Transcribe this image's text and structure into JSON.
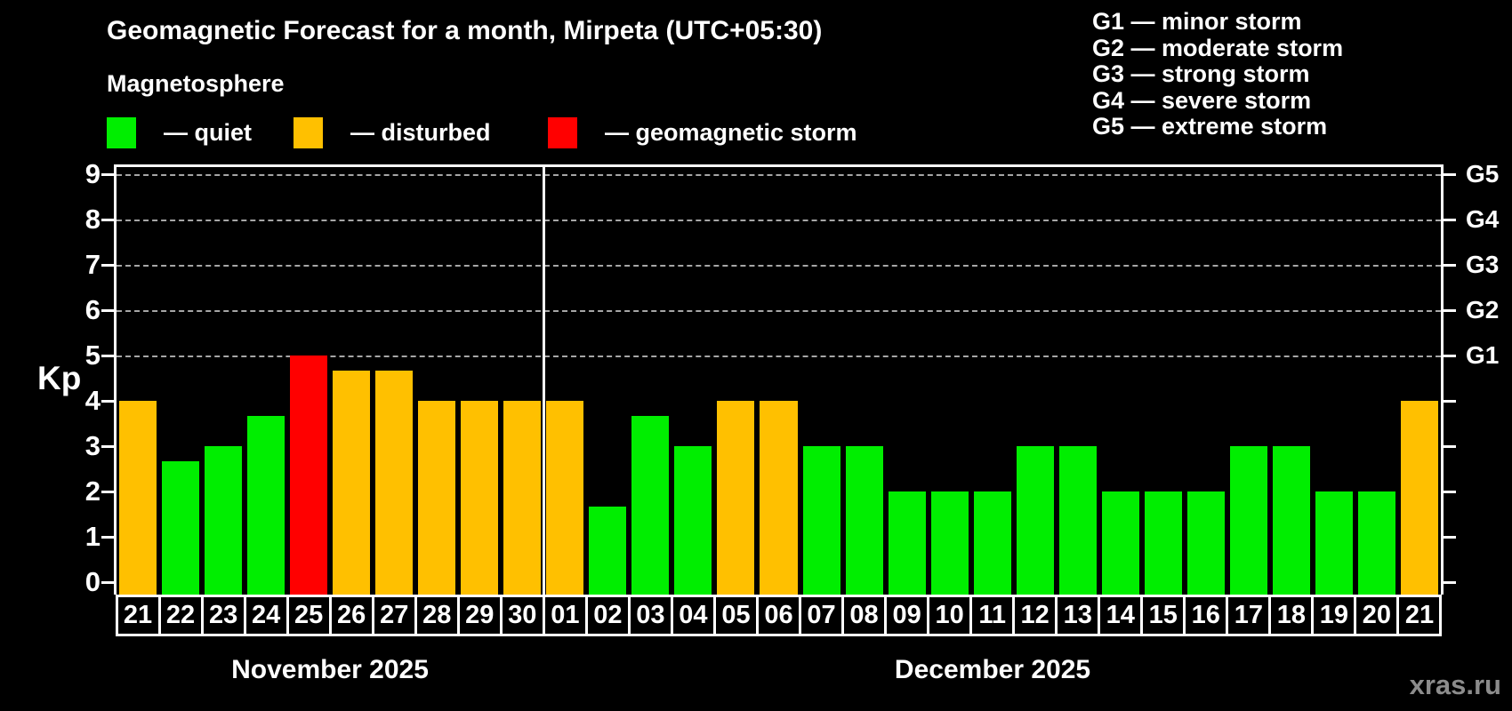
{
  "header": {
    "title": "Geomagnetic Forecast for a month, Mirpeta (UTC+05:30)"
  },
  "legend": {
    "title": "Magnetosphere",
    "items": [
      {
        "label": "— quiet",
        "state": "quiet"
      },
      {
        "label": "— disturbed",
        "state": "disturbed"
      },
      {
        "label": "— geomagnetic storm",
        "state": "storm"
      }
    ]
  },
  "g_legend": {
    "items": [
      {
        "label": "G1 — minor storm"
      },
      {
        "label": "G2 — moderate storm"
      },
      {
        "label": "G3 — strong storm"
      },
      {
        "label": "G4 — severe storm"
      },
      {
        "label": "G5 — extreme storm"
      }
    ]
  },
  "axis": {
    "kp_label": "Kp",
    "y_ticks": [
      "0",
      "1",
      "2",
      "3",
      "4",
      "5",
      "6",
      "7",
      "8",
      "9"
    ],
    "g_ticks": [
      {
        "label": "G1",
        "kp": 5
      },
      {
        "label": "G2",
        "kp": 6
      },
      {
        "label": "G3",
        "kp": 7
      },
      {
        "label": "G4",
        "kp": 8
      },
      {
        "label": "G5",
        "kp": 9
      }
    ]
  },
  "colors": {
    "quiet": "#00ee00",
    "disturbed": "#ffc000",
    "storm": "#ff0000",
    "grid": "#a6a6a6",
    "frame": "#ffffff",
    "watermark": "#8c8c8c"
  },
  "watermark": "xras.ru",
  "chart_data": {
    "type": "bar",
    "title": "Geomagnetic Forecast for a month, Mirpeta (UTC+05:30)",
    "ylabel": "Kp",
    "ylim": [
      0,
      9.4
    ],
    "grid": "dashed horizontal at Kp 5-9",
    "gridlines_at": [
      5,
      6,
      7,
      8,
      9
    ],
    "months": [
      {
        "label": "November 2025",
        "days": 10
      },
      {
        "label": "December 2025",
        "days": 21
      }
    ],
    "bars": [
      {
        "month": "November 2025",
        "day": "21",
        "kp": 4,
        "state": "disturbed"
      },
      {
        "month": "November 2025",
        "day": "22",
        "kp": 2.67,
        "state": "quiet"
      },
      {
        "month": "November 2025",
        "day": "23",
        "kp": 3,
        "state": "quiet"
      },
      {
        "month": "November 2025",
        "day": "24",
        "kp": 3.67,
        "state": "quiet"
      },
      {
        "month": "November 2025",
        "day": "25",
        "kp": 5,
        "state": "storm"
      },
      {
        "month": "November 2025",
        "day": "26",
        "kp": 4.67,
        "state": "disturbed"
      },
      {
        "month": "November 2025",
        "day": "27",
        "kp": 4.67,
        "state": "disturbed"
      },
      {
        "month": "November 2025",
        "day": "28",
        "kp": 4,
        "state": "disturbed"
      },
      {
        "month": "November 2025",
        "day": "29",
        "kp": 4,
        "state": "disturbed"
      },
      {
        "month": "November 2025",
        "day": "30",
        "kp": 4,
        "state": "disturbed"
      },
      {
        "month": "December 2025",
        "day": "01",
        "kp": 4,
        "state": "disturbed"
      },
      {
        "month": "December 2025",
        "day": "02",
        "kp": 1.67,
        "state": "quiet"
      },
      {
        "month": "December 2025",
        "day": "03",
        "kp": 3.67,
        "state": "quiet"
      },
      {
        "month": "December 2025",
        "day": "04",
        "kp": 3,
        "state": "quiet"
      },
      {
        "month": "December 2025",
        "day": "05",
        "kp": 4,
        "state": "disturbed"
      },
      {
        "month": "December 2025",
        "day": "06",
        "kp": 4,
        "state": "disturbed"
      },
      {
        "month": "December 2025",
        "day": "07",
        "kp": 3,
        "state": "quiet"
      },
      {
        "month": "December 2025",
        "day": "08",
        "kp": 3,
        "state": "quiet"
      },
      {
        "month": "December 2025",
        "day": "09",
        "kp": 2,
        "state": "quiet"
      },
      {
        "month": "December 2025",
        "day": "10",
        "kp": 2,
        "state": "quiet"
      },
      {
        "month": "December 2025",
        "day": "11",
        "kp": 2,
        "state": "quiet"
      },
      {
        "month": "December 2025",
        "day": "12",
        "kp": 3,
        "state": "quiet"
      },
      {
        "month": "December 2025",
        "day": "13",
        "kp": 3,
        "state": "quiet"
      },
      {
        "month": "December 2025",
        "day": "14",
        "kp": 2,
        "state": "quiet"
      },
      {
        "month": "December 2025",
        "day": "15",
        "kp": 2,
        "state": "quiet"
      },
      {
        "month": "December 2025",
        "day": "16",
        "kp": 2,
        "state": "quiet"
      },
      {
        "month": "December 2025",
        "day": "17",
        "kp": 3,
        "state": "quiet"
      },
      {
        "month": "December 2025",
        "day": "18",
        "kp": 3,
        "state": "quiet"
      },
      {
        "month": "December 2025",
        "day": "19",
        "kp": 2,
        "state": "quiet"
      },
      {
        "month": "December 2025",
        "day": "20",
        "kp": 2,
        "state": "quiet"
      },
      {
        "month": "December 2025",
        "day": "21",
        "kp": 4,
        "state": "disturbed"
      }
    ]
  }
}
